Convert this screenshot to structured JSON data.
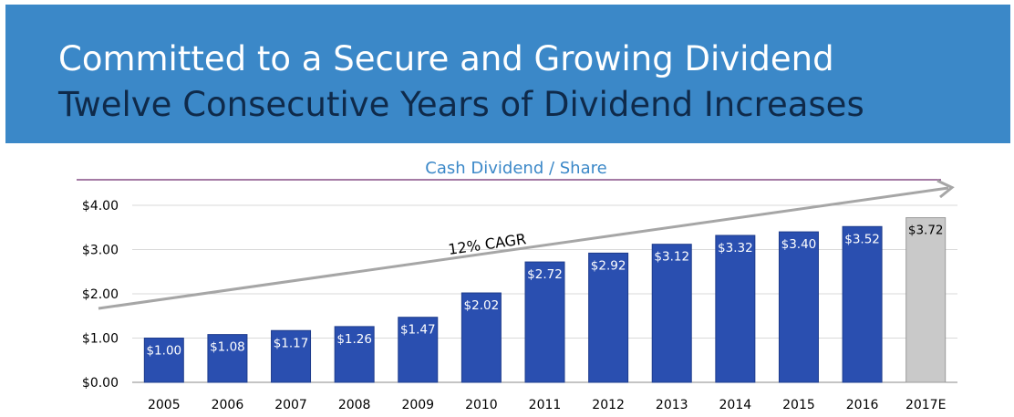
{
  "header": {
    "title": "Committed to a Secure and Growing Dividend",
    "subtitle": "Twelve Consecutive Years of Dividend Increases"
  },
  "chart_data": {
    "type": "bar",
    "title": "Cash Dividend / Share",
    "categories": [
      "2005",
      "2006",
      "2007",
      "2008",
      "2009",
      "2010",
      "2011",
      "2012",
      "2013",
      "2014",
      "2015",
      "2016",
      "2017E"
    ],
    "values": [
      1.0,
      1.08,
      1.17,
      1.26,
      1.47,
      2.02,
      2.72,
      2.92,
      3.12,
      3.32,
      3.4,
      3.52,
      3.72
    ],
    "value_labels": [
      "$1.00",
      "$1.08",
      "$1.17",
      "$1.26",
      "$1.47",
      "$2.02",
      "$2.72",
      "$2.92",
      "$3.12",
      "$3.32",
      "$3.40",
      "$3.52",
      "$3.72"
    ],
    "y_ticks": [
      "$0.00",
      "$1.00",
      "$2.00",
      "$3.00",
      "$4.00"
    ],
    "ylim": [
      0,
      4
    ],
    "grid": true,
    "annotation": "12% CAGR",
    "colors": {
      "actual": "#2a4fb0",
      "estimate": "#c9c9c9",
      "trend_arrow": "#a6a6a6",
      "title": "#3b88c8",
      "title_rule": "#6e2a6e"
    }
  }
}
